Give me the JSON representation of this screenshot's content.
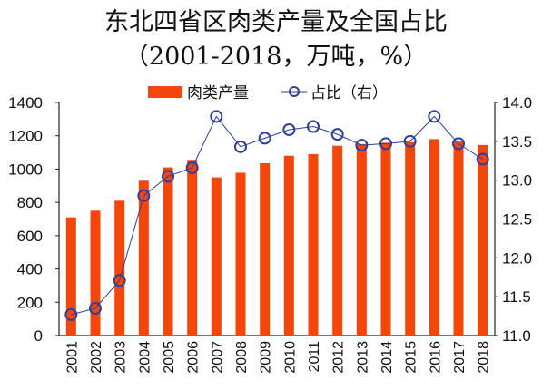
{
  "chart_data": {
    "type": "bar+line",
    "title": "东北四省区肉类产量及全国占比",
    "subtitle": "（2001-2018，万吨，%）",
    "categories": [
      "2001",
      "2002",
      "2003",
      "2004",
      "2005",
      "2006",
      "2007",
      "2008",
      "2009",
      "2010",
      "2011",
      "2012",
      "2013",
      "2014",
      "2015",
      "2016",
      "2017",
      "2018"
    ],
    "series": [
      {
        "name": "肉类产量",
        "type": "bar",
        "axis": "left",
        "color": "#F4460A",
        "values": [
          710,
          750,
          810,
          930,
          1010,
          1055,
          950,
          978,
          1035,
          1080,
          1090,
          1140,
          1150,
          1158,
          1162,
          1180,
          1165,
          1145
        ]
      },
      {
        "name": "占比（右）",
        "type": "line",
        "axis": "right",
        "color": "#2E3F9E",
        "values": [
          11.27,
          11.35,
          11.71,
          12.8,
          13.05,
          13.16,
          13.82,
          13.43,
          13.54,
          13.65,
          13.69,
          13.59,
          13.45,
          13.47,
          13.5,
          13.82,
          13.47,
          13.27
        ]
      }
    ],
    "y_left": {
      "min": 0,
      "max": 1400,
      "ticks": [
        "0",
        "200",
        "400",
        "600",
        "800",
        "1000",
        "1200",
        "1400"
      ]
    },
    "y_right": {
      "min": 11.0,
      "max": 14.0,
      "ticks": [
        "11.0",
        "11.5",
        "12.0",
        "12.5",
        "13.0",
        "13.5",
        "14.0"
      ]
    },
    "grid": false,
    "legend": "top"
  }
}
